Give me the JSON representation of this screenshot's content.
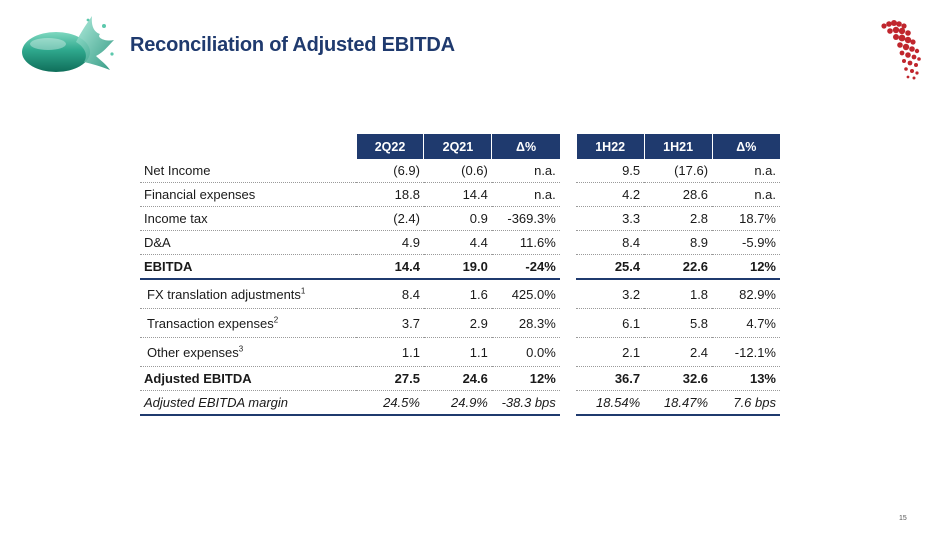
{
  "header": {
    "title": "Reconciliation of Adjusted EBITDA",
    "page_number": "15"
  },
  "table": {
    "columns": [
      "2Q22",
      "2Q21",
      "Δ%",
      "1H22",
      "1H21",
      "Δ%"
    ],
    "rows": [
      {
        "label": "Net Income",
        "sup": "",
        "values": [
          "(6.9)",
          "(0.6)",
          "n.a.",
          "9.5",
          "(17.6)",
          "n.a."
        ]
      },
      {
        "label": "Financial expenses",
        "sup": "",
        "values": [
          "18.8",
          "14.4",
          "n.a.",
          "4.2",
          "28.6",
          "n.a."
        ]
      },
      {
        "label": "Income tax",
        "sup": "",
        "values": [
          "(2.4)",
          "0.9",
          "-369.3%",
          "3.3",
          "2.8",
          "18.7%"
        ]
      },
      {
        "label": "D&A",
        "sup": "",
        "values": [
          "4.9",
          "4.4",
          "11.6%",
          "8.4",
          "8.9",
          "-5.9%"
        ]
      },
      {
        "label": "EBITDA",
        "sup": "",
        "values": [
          "14.4",
          "19.0",
          "-24%",
          "25.4",
          "22.6",
          "12%"
        ]
      },
      {
        "label": "FX translation adjustments",
        "sup": "1",
        "values": [
          "8.4",
          "1.6",
          "425.0%",
          "3.2",
          "1.8",
          "82.9%"
        ]
      },
      {
        "label": "Transaction expenses",
        "sup": "2",
        "values": [
          "3.7",
          "2.9",
          "28.3%",
          "6.1",
          "5.8",
          "4.7%"
        ]
      },
      {
        "label": "Other expenses",
        "sup": "3",
        "values": [
          "1.1",
          "1.1",
          "0.0%",
          "2.1",
          "2.4",
          "-12.1%"
        ]
      },
      {
        "label": "Adjusted EBITDA",
        "sup": "",
        "values": [
          "27.5",
          "24.6",
          "12%",
          "36.7",
          "32.6",
          "13%"
        ]
      },
      {
        "label": "Adjusted EBITDA margin",
        "sup": "",
        "values": [
          "24.5%",
          "24.9%",
          "-38.3 bps",
          "18.54%",
          "18.47%",
          "7.6 bps"
        ]
      }
    ]
  },
  "icons": {
    "left_logo": "green-capsule-splash-logo",
    "right_logo": "red-dot-arrow-logo"
  },
  "colors": {
    "brand_navy": "#1f3a6e",
    "capsule_green": "#2fa88d",
    "logo_red": "#c0262d"
  }
}
